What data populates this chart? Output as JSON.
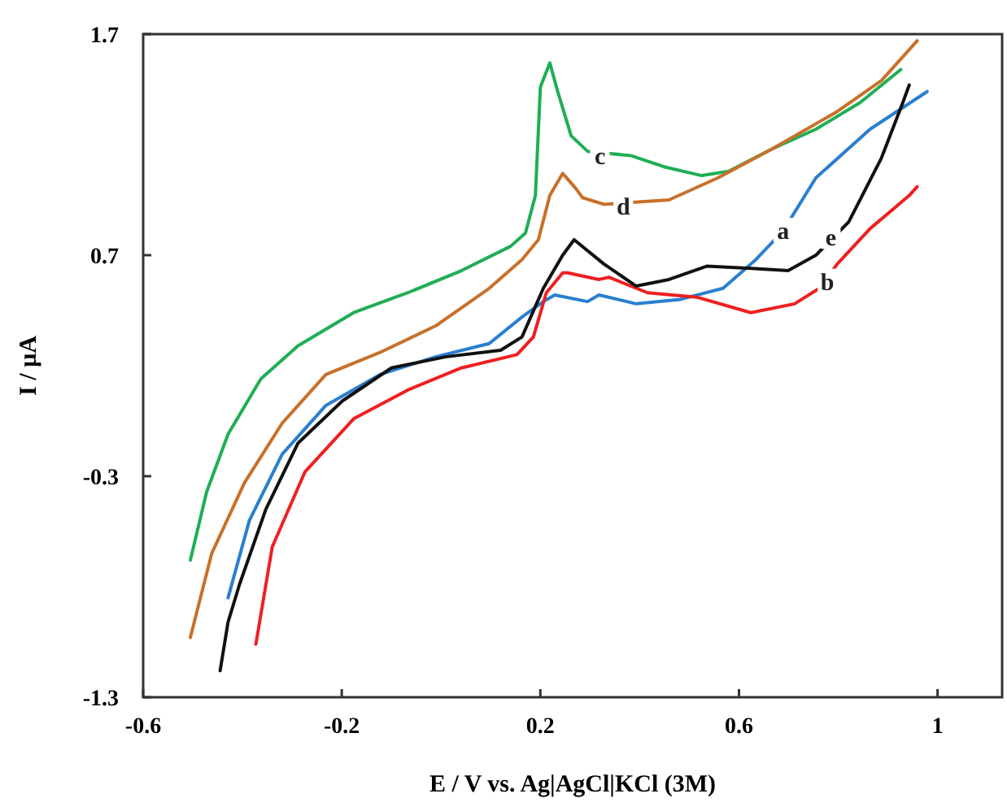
{
  "chart_data": {
    "type": "line",
    "xlabel": "E / V vs. Ag|AgCl|KCl (3M)",
    "ylabel": "I / µA",
    "xlim": [
      -0.6,
      1.13
    ],
    "ylim": [
      -1.3,
      1.7
    ],
    "xticks": [
      -0.6,
      -0.2,
      0.2,
      0.6,
      1
    ],
    "yticks": [
      -1.3,
      -0.3,
      0.7,
      1.7
    ],
    "grid": false,
    "marker": "none",
    "line_style": "solid",
    "series": [
      {
        "color": "#2a7fcf",
        "x": [
          -0.429,
          -0.386,
          -0.32,
          -0.232,
          -0.123,
          -0.011,
          0.097,
          0.163,
          0.206,
          0.229,
          0.295,
          0.318,
          0.393,
          0.482,
          0.568,
          0.634,
          0.689,
          0.755,
          0.864,
          0.979
        ],
        "values": [
          -0.85,
          -0.5,
          -0.2,
          0.02,
          0.16,
          0.24,
          0.3,
          0.42,
          0.49,
          0.52,
          0.49,
          0.52,
          0.48,
          0.5,
          0.55,
          0.68,
          0.81,
          1.05,
          1.27,
          1.44
        ]
      },
      {
        "color": "#ee2020",
        "x": [
          -0.373,
          -0.34,
          -0.274,
          -0.176,
          -0.067,
          0.041,
          0.153,
          0.186,
          0.212,
          0.245,
          0.255,
          0.318,
          0.338,
          0.416,
          0.515,
          0.624,
          0.712,
          0.762,
          0.798,
          0.864,
          0.943,
          0.959
        ],
        "values": [
          -1.06,
          -0.62,
          -0.28,
          -0.04,
          0.09,
          0.19,
          0.25,
          0.33,
          0.53,
          0.62,
          0.62,
          0.59,
          0.6,
          0.53,
          0.51,
          0.44,
          0.48,
          0.55,
          0.66,
          0.82,
          0.97,
          1.01
        ]
      },
      {
        "color": "#1fae55",
        "x": [
          -0.505,
          -0.472,
          -0.429,
          -0.363,
          -0.288,
          -0.176,
          -0.067,
          0.041,
          0.14,
          0.17,
          0.19,
          0.2,
          0.219,
          0.235,
          0.262,
          0.295,
          0.383,
          0.449,
          0.525,
          0.58,
          0.666,
          0.755,
          0.844,
          0.926
        ],
        "values": [
          -0.68,
          -0.37,
          -0.11,
          0.14,
          0.29,
          0.44,
          0.53,
          0.63,
          0.74,
          0.8,
          0.97,
          1.46,
          1.57,
          1.44,
          1.24,
          1.17,
          1.15,
          1.1,
          1.06,
          1.08,
          1.18,
          1.27,
          1.39,
          1.54
        ]
      },
      {
        "color": "#c8702a",
        "x": [
          -0.505,
          -0.462,
          -0.396,
          -0.32,
          -0.232,
          -0.123,
          -0.011,
          0.097,
          0.163,
          0.196,
          0.219,
          0.245,
          0.272,
          0.285,
          0.328,
          0.459,
          0.558,
          0.666,
          0.798,
          0.887,
          0.959
        ],
        "values": [
          -1.03,
          -0.65,
          -0.33,
          -0.06,
          0.16,
          0.26,
          0.38,
          0.55,
          0.68,
          0.77,
          0.97,
          1.07,
          1.0,
          0.96,
          0.93,
          0.95,
          1.05,
          1.18,
          1.35,
          1.49,
          1.67
        ]
      },
      {
        "color": "#111111",
        "x": [
          -0.445,
          -0.429,
          -0.406,
          -0.353,
          -0.288,
          -0.199,
          -0.1,
          0.009,
          0.12,
          0.163,
          0.206,
          0.245,
          0.268,
          0.328,
          0.393,
          0.459,
          0.535,
          0.624,
          0.699,
          0.755,
          0.821,
          0.887,
          0.93,
          0.943
        ],
        "values": [
          -1.18,
          -0.96,
          -0.79,
          -0.45,
          -0.15,
          0.04,
          0.19,
          0.24,
          0.27,
          0.33,
          0.55,
          0.7,
          0.77,
          0.66,
          0.56,
          0.59,
          0.65,
          0.64,
          0.63,
          0.7,
          0.85,
          1.14,
          1.39,
          1.47
        ]
      }
    ],
    "annotations": [
      {
        "text": "a",
        "x": 0.689,
        "y": 0.81
      },
      {
        "text": "b",
        "x": 0.778,
        "y": 0.58
      },
      {
        "text": "c",
        "x": 0.32,
        "y": 1.15
      },
      {
        "text": "d",
        "x": 0.367,
        "y": 0.92
      },
      {
        "text": "e",
        "x": 0.785,
        "y": 0.78
      }
    ]
  }
}
